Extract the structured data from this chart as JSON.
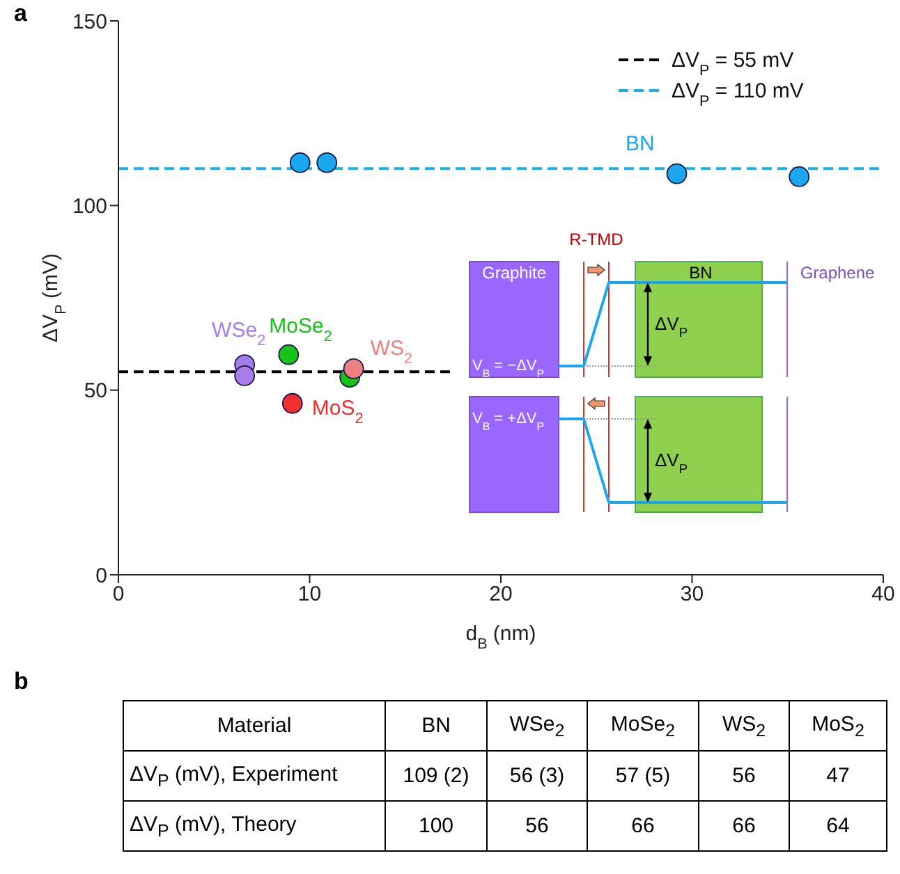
{
  "chart_data": [
    {
      "type": "scatter",
      "title": "a",
      "xlabel": "d$_{B}$ (nm)",
      "ylabel": "ΔV$_{P}$ (mV)",
      "xlim": [
        0,
        40
      ],
      "xticks": [
        0,
        10,
        20,
        30,
        40
      ],
      "ylim": [
        0,
        150
      ],
      "yticks": [
        0,
        50,
        100,
        150
      ],
      "marker": "circle",
      "line_style": "dashed",
      "legend": "top right",
      "series": [
        {
          "type": "line",
          "name": "ΔV$_{P}$ = 55 mV",
          "color": "#000000",
          "marker": "none",
          "x": [
            0,
            17.5
          ],
          "values": [
            55,
            55
          ]
        },
        {
          "type": "line",
          "name": "ΔV$_{P}$ = 110 mV",
          "color": "#1ab0f0",
          "marker": "none",
          "x": [
            0,
            40
          ],
          "values": [
            110,
            110
          ]
        },
        {
          "name": "BN",
          "color": "#1aa7f0",
          "x": [
            9.5,
            10.9,
            29.2,
            35.6
          ],
          "values": [
            111.6,
            111.6,
            108.6,
            107.8
          ]
        },
        {
          "name": "WSe$_{2}$",
          "color": "#a77de8",
          "x": [
            6.6,
            6.6
          ],
          "values": [
            56.9,
            53.9
          ]
        },
        {
          "name": "MoSe$_{2}$",
          "color": "#19c219",
          "x": [
            8.9,
            12.1
          ],
          "values": [
            59.6,
            53.5
          ]
        },
        {
          "name": "WS$_{2}$",
          "color": "#f08080",
          "x": [
            12.3
          ],
          "values": [
            55.8
          ]
        },
        {
          "name": "MoS$_{2}$",
          "color": "#f03030",
          "x": [
            9.1
          ],
          "values": [
            46.4
          ]
        }
      ],
      "annotations": [
        "R-TMD",
        "Graphite",
        "BN",
        "Graphene",
        "V$_{B}$ = −ΔV$_{P}$",
        "ΔV$_{P}$",
        "V$_{B}$ = +ΔV$_{P}$",
        "ΔV$_{P}$"
      ]
    },
    {
      "type": "other",
      "title": "b",
      "annotations": [
        "Material",
        "BN",
        "WSe$_{2}$",
        "MoSe$_{2}$",
        "WS$_{2}$",
        "MoS$_{2}$",
        "ΔV$_{P}$ (mV), Experiment",
        "109 (2)",
        "56 (3)",
        "57 (5)",
        "56",
        "47",
        "ΔV$_{P}$ (mV), Theory",
        "100",
        "56",
        "66",
        "66",
        "64"
      ]
    }
  ]
}
